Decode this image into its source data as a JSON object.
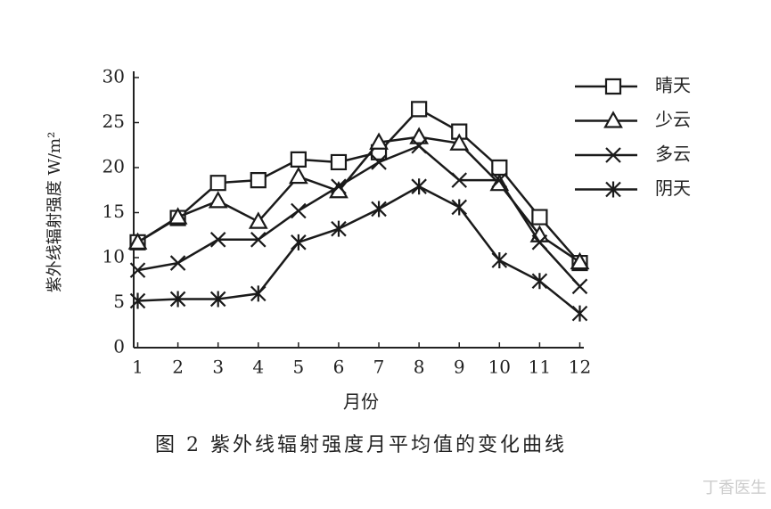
{
  "chart_data": {
    "type": "line",
    "x": [
      1,
      2,
      3,
      4,
      5,
      6,
      7,
      8,
      9,
      10,
      11,
      12
    ],
    "xlabel": "月份",
    "ylabel": "紫外线辐射强度 W/m²",
    "caption": "图 2  紫外线辐射强度月平均值的变化曲线",
    "watermark": "丁香医生",
    "xlim": [
      0.9,
      12.1
    ],
    "xticks": [
      1,
      2,
      3,
      4,
      5,
      6,
      7,
      8,
      9,
      10,
      11,
      12
    ],
    "ylim": [
      0,
      30
    ],
    "yticks": [
      0,
      5,
      10,
      15,
      20,
      25,
      30
    ],
    "grid": false,
    "legend": "upper right",
    "series": [
      {
        "name": "晴天",
        "color": "#1a1a1a",
        "marker": "square",
        "values": [
          11.7,
          14.4,
          18.3,
          18.6,
          20.9,
          20.6,
          21.7,
          26.5,
          24.0,
          20.0,
          14.5,
          9.4
        ]
      },
      {
        "name": "少云",
        "color": "#1a1a1a",
        "marker": "triangle",
        "values": [
          11.7,
          14.5,
          16.3,
          14.0,
          19.0,
          17.4,
          22.8,
          23.4,
          22.7,
          18.2,
          12.5,
          9.5
        ]
      },
      {
        "name": "多云",
        "color": "#1a1a1a",
        "marker": "x",
        "values": [
          8.6,
          9.4,
          12.0,
          12.0,
          15.2,
          17.9,
          20.6,
          22.4,
          18.6,
          18.6,
          11.7,
          6.8
        ]
      },
      {
        "name": "阴天",
        "color": "#1a1a1a",
        "marker": "star",
        "values": [
          5.2,
          5.4,
          5.4,
          6.0,
          11.7,
          13.2,
          15.4,
          17.9,
          15.6,
          9.7,
          7.4,
          3.8
        ]
      }
    ]
  }
}
